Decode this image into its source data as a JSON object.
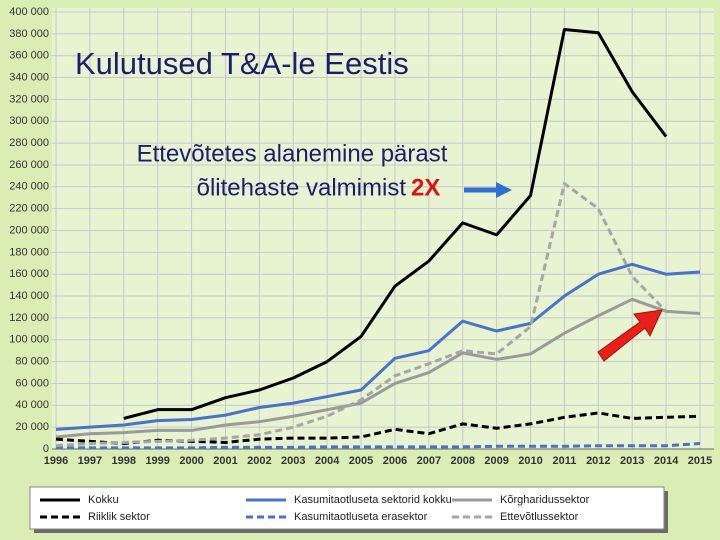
{
  "chart_data": {
    "type": "line",
    "title": "Kulutused T&A-le Eestis",
    "annotations": [
      "Ettevõtetes alanemine pärast",
      "õlitehaste valmimist",
      "2X"
    ],
    "x": [
      1996,
      1997,
      1998,
      1999,
      2000,
      2001,
      2002,
      2003,
      2004,
      2005,
      2006,
      2007,
      2008,
      2009,
      2010,
      2011,
      2012,
      2013,
      2014,
      2015
    ],
    "xlim": [
      1996,
      2015
    ],
    "xticks": [
      1996,
      1997,
      1998,
      1999,
      2000,
      2001,
      2002,
      2003,
      2004,
      2005,
      2006,
      2007,
      2008,
      2009,
      2010,
      2011,
      2012,
      2013,
      2014,
      2015
    ],
    "ylim": [
      0,
      400000
    ],
    "yticks": [
      0,
      {
        "value": 20000,
        "label": "20 000"
      },
      {
        "value": 40000,
        "label": "40 000"
      },
      {
        "value": 60000,
        "label": "60 000"
      },
      {
        "value": 80000,
        "label": "80 000"
      },
      {
        "value": 100000,
        "label": "100 000"
      },
      {
        "value": 120000,
        "label": "120 000"
      },
      {
        "value": 140000,
        "label": "140 000"
      },
      {
        "value": 160000,
        "label": "160 000"
      },
      {
        "value": 180000,
        "label": "180 000"
      },
      {
        "value": 200000,
        "label": "200 000"
      },
      {
        "value": 220000,
        "label": "220 000"
      },
      {
        "value": 240000,
        "label": "240 000"
      },
      {
        "value": 260000,
        "label": "260 000"
      },
      {
        "value": 280000,
        "label": "280 000"
      },
      {
        "value": 300000,
        "label": "300 000"
      },
      {
        "value": 320000,
        "label": "320 000"
      },
      {
        "value": 340000,
        "label": "340 000"
      },
      {
        "value": 360000,
        "label": "360 000"
      },
      {
        "value": 380000,
        "label": "380 000"
      },
      {
        "value": 400000,
        "label": "400 000"
      }
    ],
    "grid": true,
    "legend": "bottom",
    "series": [
      {
        "name": "Kokku",
        "color": "#000000",
        "style": "solid",
        "values": [
          null,
          null,
          28000,
          36000,
          36000,
          47000,
          54000,
          65000,
          80000,
          103000,
          149000,
          172000,
          207000,
          196000,
          232000,
          384000,
          381000,
          327000,
          286000,
          null
        ]
      },
      {
        "name": "Kasumitaotluseta sektorid kokku",
        "color": "#4a72c8",
        "style": "solid",
        "values": [
          18000,
          20000,
          22000,
          26000,
          27000,
          31000,
          38000,
          42000,
          48000,
          54000,
          83000,
          90000,
          117000,
          108000,
          115000,
          140000,
          160000,
          169000,
          160000,
          162000
        ]
      },
      {
        "name": "Kõrgharidussektor",
        "color": "#9a9a9a",
        "style": "solid",
        "values": [
          11000,
          14000,
          15000,
          17000,
          17000,
          22000,
          25000,
          30000,
          36000,
          42000,
          60000,
          70000,
          88000,
          82000,
          87000,
          106000,
          122000,
          137000,
          126000,
          124000
        ]
      },
      {
        "name": "Riiklik sektor",
        "color": "#000000",
        "style": "dashed",
        "values": [
          9000,
          7000,
          5000,
          8000,
          7000,
          6000,
          9000,
          10000,
          10000,
          11000,
          18000,
          14000,
          23000,
          19000,
          23000,
          29000,
          33000,
          28000,
          29000,
          30000
        ]
      },
      {
        "name": "Kasumitaotluseta erasektor",
        "color": "#4a72c8",
        "style": "dashed",
        "values": [
          1000,
          1000,
          1000,
          1000,
          1000,
          1500,
          1500,
          1500,
          2000,
          2000,
          2000,
          2000,
          2000,
          2500,
          2500,
          2500,
          3000,
          3000,
          3000,
          5000
        ]
      },
      {
        "name": "Ettevõtlussektor",
        "color": "#a6a6a6",
        "style": "dashed",
        "values": [
          3000,
          5000,
          6000,
          7000,
          8000,
          10000,
          13000,
          20000,
          30000,
          45000,
          67000,
          78000,
          90000,
          87000,
          112000,
          243000,
          220000,
          158000,
          126000,
          null
        ]
      }
    ]
  }
}
